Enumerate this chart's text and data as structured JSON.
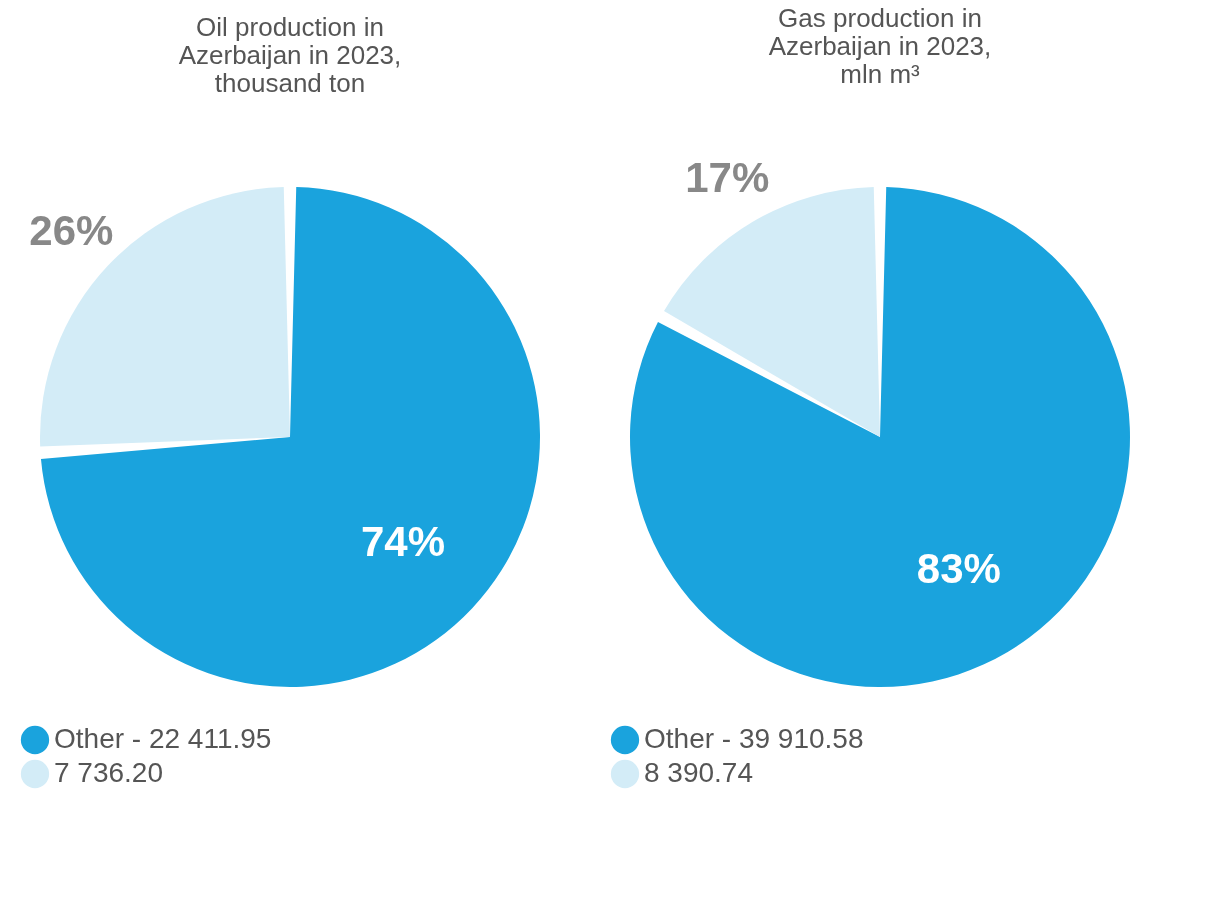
{
  "chart_data": [
    {
      "type": "pie",
      "title": "Oil production in Azerbaijan in 2023, thousand ton",
      "categories": [
        "Other   - 22 411.95",
        "7 736.20"
      ],
      "values": [
        74,
        26
      ],
      "colors": [
        "#1aa3dd",
        "#d3ecf7"
      ],
      "value_labels": [
        "74%",
        "26%"
      ],
      "legend": "bottom"
    },
    {
      "type": "pie",
      "title": "Gas production in Azerbaijan in 2023, mln m³",
      "categories": [
        "Other     - 39 910.58",
        "8 390.74"
      ],
      "values": [
        83,
        17
      ],
      "colors": [
        "#1aa3dd",
        "#d3ecf7"
      ],
      "value_labels": [
        "83%",
        "17%"
      ],
      "legend": "bottom"
    }
  ]
}
